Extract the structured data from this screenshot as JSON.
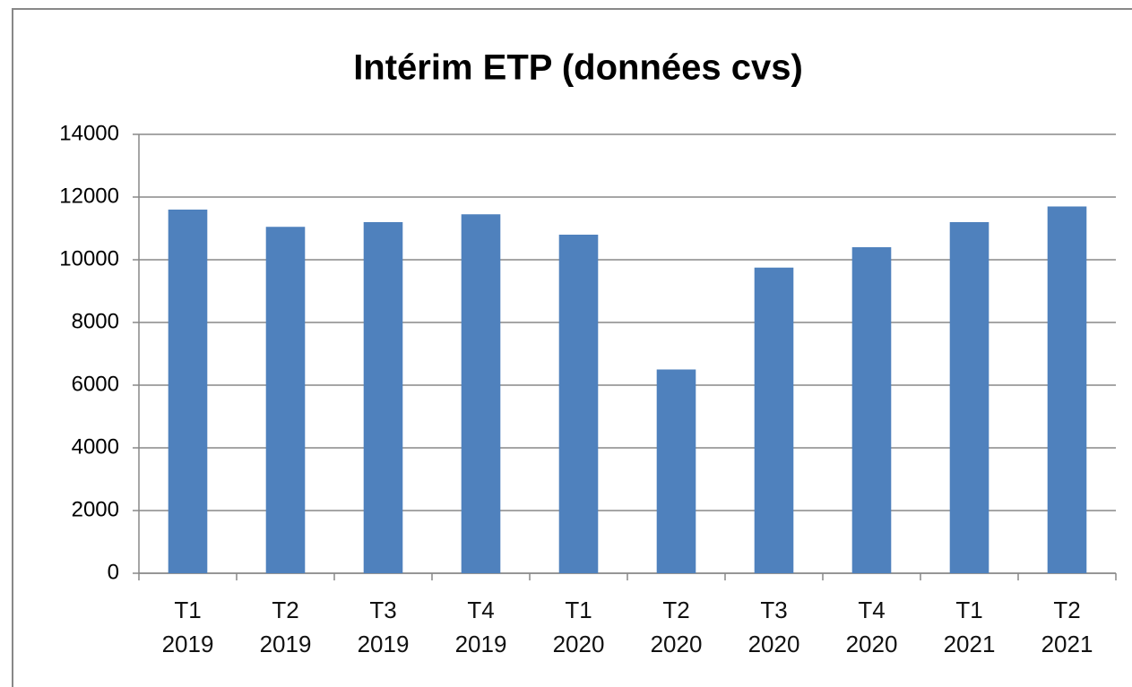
{
  "chart_data": {
    "type": "bar",
    "title": "Intérim ETP (données cvs)",
    "categories": [
      "T1 2019",
      "T2 2019",
      "T3 2019",
      "T4 2019",
      "T1 2020",
      "T2 2020",
      "T3 2020",
      "T4 2020",
      "T1 2021",
      "T2 2021"
    ],
    "values": [
      11600,
      11050,
      11200,
      11450,
      10800,
      6500,
      9750,
      10400,
      11200,
      11700
    ],
    "color": "#4f81bd",
    "ylim": [
      0,
      14000
    ],
    "yticks": [
      0,
      2000,
      4000,
      6000,
      8000,
      10000,
      12000,
      14000
    ],
    "grid": true
  }
}
